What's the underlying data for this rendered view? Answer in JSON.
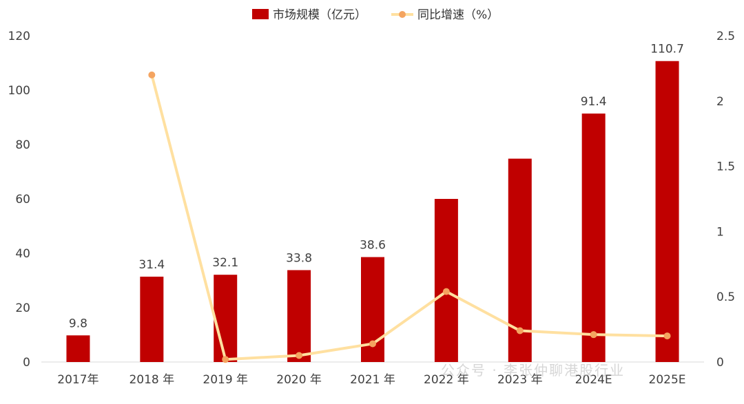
{
  "chart_data": {
    "type": "bar+line",
    "categories": [
      "2017年",
      "2018 年",
      "2019 年",
      "2020 年",
      "2021 年",
      "2022 年",
      "2023 年",
      "2024E",
      "2025E"
    ],
    "series": [
      {
        "name": "市场规模（亿元）",
        "type": "bar",
        "axis": "left",
        "color": "#C00000",
        "values": [
          9.8,
          31.4,
          32.1,
          33.8,
          38.6,
          60.0,
          74.8,
          91.4,
          110.7
        ],
        "data_labels": [
          "9.8",
          "31.4",
          "32.1",
          "33.8",
          "38.6",
          "",
          "",
          "91.4",
          "110.7"
        ]
      },
      {
        "name": "同比增速（%）",
        "type": "line",
        "axis": "right",
        "color": "#FFE0A0",
        "marker_color": "#F4A460",
        "values": [
          null,
          2.2,
          0.02,
          0.05,
          0.14,
          0.54,
          0.24,
          0.21,
          0.2
        ]
      }
    ],
    "left_axis": {
      "min": 0,
      "max": 120,
      "ticks": [
        "0",
        "20",
        "40",
        "60",
        "80",
        "100",
        "120"
      ]
    },
    "right_axis": {
      "min": 0,
      "max": 2.5,
      "ticks": [
        "0",
        "0.5",
        "1",
        "1.5",
        "2",
        "2.5"
      ]
    },
    "legend_position": "top-center",
    "grid": false
  },
  "watermark": "公众号 · 李张仲聊港股行业"
}
